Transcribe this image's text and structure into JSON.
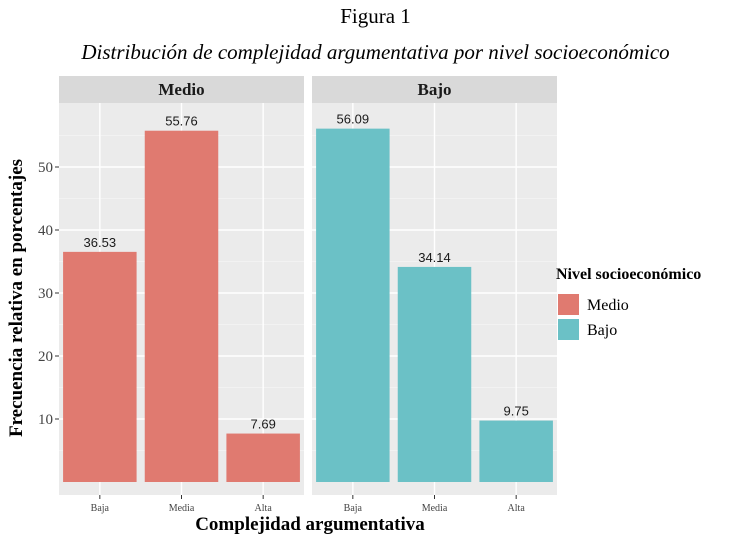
{
  "figure": {
    "label": "Figura 1",
    "caption": "Distribución de complejidad argumentativa por nivel socioeconómico"
  },
  "chart_data": {
    "type": "bar",
    "xlabel": "Complejidad argumentativa",
    "ylabel": "Frecuencia relativa en porcentajes",
    "categories": [
      "Baja",
      "Media",
      "Alta"
    ],
    "yticks": [
      10,
      20,
      30,
      40,
      50
    ],
    "ylim": [
      0,
      60
    ],
    "grid": true,
    "legend": {
      "title": "Nivel socioeconómico",
      "position": "right",
      "entries": [
        {
          "name": "Medio",
          "color": "#E07A70"
        },
        {
          "name": "Bajo",
          "color": "#6BC1C6"
        }
      ]
    },
    "panels": [
      {
        "name": "Medio",
        "color": "#E07A70",
        "values": [
          36.53,
          55.76,
          7.69
        ],
        "labels": [
          "36.53",
          "55.76",
          "7.69"
        ]
      },
      {
        "name": "Bajo",
        "color": "#6BC1C6",
        "values": [
          56.09,
          34.14,
          9.75
        ],
        "labels": [
          "56.09",
          "34.14",
          "9.75"
        ]
      }
    ]
  }
}
